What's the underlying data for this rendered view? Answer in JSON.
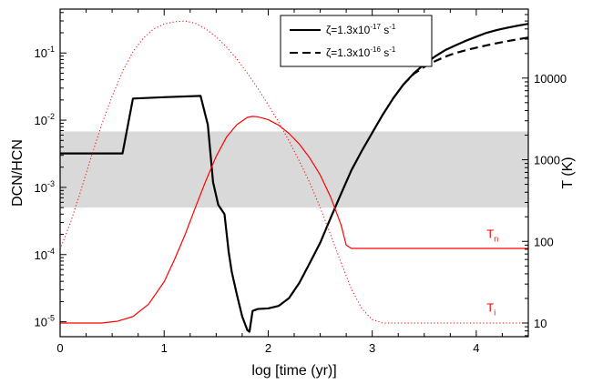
{
  "chart_data": {
    "type": "line",
    "xlabel": "log [time (yr)]",
    "ylabel_left": "DCN/HCN",
    "ylabel_right": "T (K)",
    "xlim": [
      0,
      4.5
    ],
    "ylim_left": [
      6e-06,
      0.45
    ],
    "ylim_right": [
      6.8,
      70000
    ],
    "yscale_left": "log",
    "yscale_right": "log",
    "x_ticks": [
      "0",
      "1",
      "2",
      "3",
      "4"
    ],
    "x_tick_values": [
      0,
      1,
      2,
      3,
      4
    ],
    "y_left_ticks": [
      {
        "base": "10",
        "exp": "-5",
        "value": 1e-05
      },
      {
        "base": "10",
        "exp": "-4",
        "value": 0.0001
      },
      {
        "base": "10",
        "exp": "-3",
        "value": 0.001
      },
      {
        "base": "10",
        "exp": "-2",
        "value": 0.01
      },
      {
        "base": "10",
        "exp": "-1",
        "value": 0.1
      }
    ],
    "y_right_ticks": [
      "10",
      "100",
      "1000",
      "10000"
    ],
    "y_right_tick_values": [
      10,
      100,
      1000,
      10000
    ],
    "observed_band": {
      "y_min": 0.0005,
      "y_max": 0.0068,
      "color": "#d9d9d9"
    },
    "legend": {
      "placement": "top-center",
      "entries": [
        {
          "prefix": "ζ=1.3x10",
          "exp": "-17",
          "unit": " s",
          "unit_exp": "-1",
          "style": "solid"
        },
        {
          "prefix": "ζ=1.3x10",
          "exp": "-16",
          "unit": " s",
          "unit_exp": "-1",
          "style": "dashed"
        }
      ]
    },
    "annotations": [
      {
        "text": "T",
        "sub": "n",
        "x": 4.1,
        "y_right": 100,
        "color": "#ff0000"
      },
      {
        "text": "T",
        "sub": "i",
        "x": 4.1,
        "y_right": 12.5,
        "color": "#ff0000"
      }
    ],
    "series": [
      {
        "id": "zeta17",
        "axis": "left",
        "color": "#000000",
        "style": "solid",
        "width": 2.2,
        "points": [
          [
            0,
            0.0032
          ],
          [
            0.6,
            0.0032
          ],
          [
            0.7,
            0.021
          ],
          [
            1.0,
            0.022
          ],
          [
            1.35,
            0.023
          ],
          [
            1.42,
            0.0085
          ],
          [
            1.47,
            0.0012
          ],
          [
            1.52,
            0.00055
          ],
          [
            1.58,
            0.0004
          ],
          [
            1.62,
            0.00011
          ],
          [
            1.65,
            5.5e-05
          ],
          [
            1.7,
            2.5e-05
          ],
          [
            1.75,
            1.2e-05
          ],
          [
            1.8,
            7.5e-06
          ],
          [
            1.82,
            7.1e-06
          ],
          [
            1.85,
            1.45e-05
          ],
          [
            1.9,
            1.55e-05
          ],
          [
            2.0,
            1.58e-05
          ],
          [
            2.1,
            1.72e-05
          ],
          [
            2.2,
            2.25e-05
          ],
          [
            2.3,
            3.8e-05
          ],
          [
            2.4,
            7.5e-05
          ],
          [
            2.5,
            0.00015
          ],
          [
            2.6,
            0.00035
          ],
          [
            2.7,
            0.0008
          ],
          [
            2.8,
            0.0018
          ],
          [
            2.9,
            0.0035
          ],
          [
            3.0,
            0.0065
          ],
          [
            3.1,
            0.012
          ],
          [
            3.2,
            0.021
          ],
          [
            3.3,
            0.034
          ],
          [
            3.4,
            0.05
          ],
          [
            3.5,
            0.068
          ],
          [
            3.6,
            0.088
          ],
          [
            3.7,
            0.11
          ],
          [
            3.8,
            0.13
          ],
          [
            3.9,
            0.152
          ],
          [
            4.0,
            0.175
          ],
          [
            4.1,
            0.2
          ],
          [
            4.2,
            0.22
          ],
          [
            4.3,
            0.238
          ],
          [
            4.4,
            0.255
          ],
          [
            4.5,
            0.272
          ]
        ]
      },
      {
        "id": "zeta16",
        "axis": "left",
        "color": "#000000",
        "style": "dashed",
        "width": 2.2,
        "points": [
          [
            3.3,
            0.034
          ],
          [
            3.4,
            0.049
          ],
          [
            3.5,
            0.062
          ],
          [
            3.6,
            0.075
          ],
          [
            3.7,
            0.088
          ],
          [
            3.8,
            0.1
          ],
          [
            3.9,
            0.11
          ],
          [
            4.0,
            0.12
          ],
          [
            4.1,
            0.13
          ],
          [
            4.2,
            0.14
          ],
          [
            4.3,
            0.15
          ],
          [
            4.4,
            0.16
          ],
          [
            4.5,
            0.17
          ]
        ]
      },
      {
        "id": "Tn",
        "axis": "right",
        "color": "#ff0000",
        "style": "solid",
        "width": 1.2,
        "points": [
          [
            0,
            10
          ],
          [
            0.4,
            10
          ],
          [
            0.55,
            10.5
          ],
          [
            0.7,
            12
          ],
          [
            0.85,
            17
          ],
          [
            1.0,
            32
          ],
          [
            1.1,
            60
          ],
          [
            1.2,
            120
          ],
          [
            1.3,
            260
          ],
          [
            1.4,
            550
          ],
          [
            1.5,
            1100
          ],
          [
            1.6,
            1900
          ],
          [
            1.7,
            2700
          ],
          [
            1.8,
            3300
          ],
          [
            1.85,
            3400
          ],
          [
            1.9,
            3350
          ],
          [
            2.0,
            3100
          ],
          [
            2.1,
            2650
          ],
          [
            2.2,
            2100
          ],
          [
            2.3,
            1550
          ],
          [
            2.4,
            1050
          ],
          [
            2.5,
            650
          ],
          [
            2.6,
            350
          ],
          [
            2.7,
            160
          ],
          [
            2.75,
            90
          ],
          [
            2.8,
            82
          ],
          [
            3.0,
            82
          ],
          [
            4.5,
            82
          ]
        ]
      },
      {
        "id": "Ti",
        "axis": "right",
        "color": "#ff0000",
        "style": "dotted",
        "width": 1.0,
        "points": [
          [
            0,
            80
          ],
          [
            0.1,
            170
          ],
          [
            0.2,
            420
          ],
          [
            0.3,
            1100
          ],
          [
            0.4,
            2700
          ],
          [
            0.5,
            6000
          ],
          [
            0.6,
            12000
          ],
          [
            0.7,
            21000
          ],
          [
            0.8,
            31000
          ],
          [
            0.9,
            40000
          ],
          [
            1.0,
            46000
          ],
          [
            1.1,
            49000
          ],
          [
            1.2,
            50000
          ],
          [
            1.3,
            47000
          ],
          [
            1.4,
            40000
          ],
          [
            1.5,
            32000
          ],
          [
            1.6,
            24000
          ],
          [
            1.7,
            17000
          ],
          [
            1.8,
            11500
          ],
          [
            1.9,
            7500
          ],
          [
            2.0,
            4700
          ],
          [
            2.1,
            2900
          ],
          [
            2.2,
            1700
          ],
          [
            2.3,
            960
          ],
          [
            2.4,
            520
          ],
          [
            2.5,
            260
          ],
          [
            2.6,
            120
          ],
          [
            2.7,
            55
          ],
          [
            2.8,
            26
          ],
          [
            2.9,
            15
          ],
          [
            3.0,
            11
          ],
          [
            3.1,
            10
          ],
          [
            4.5,
            10
          ]
        ]
      }
    ]
  }
}
